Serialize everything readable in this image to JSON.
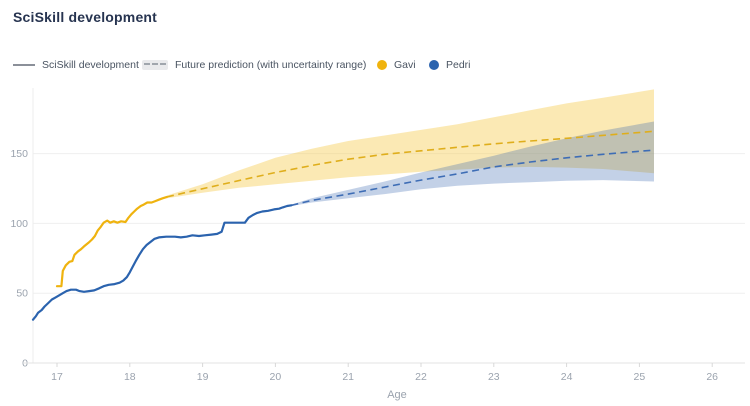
{
  "title": "SciSkill development",
  "legend": {
    "items": [
      {
        "label": "SciSkill development",
        "swatch": "solid-line",
        "color": "#8b9099"
      },
      {
        "label": "Future prediction (with uncertainty range)",
        "swatch": "dashed-pill",
        "color": "#a0a6ad",
        "bg": "#e9eaec"
      },
      {
        "label": "Gavi",
        "swatch": "dot",
        "color": "#F0B30D"
      },
      {
        "label": "Pedri",
        "swatch": "dot",
        "color": "#2B63AE"
      }
    ]
  },
  "chart_data": {
    "type": "line",
    "title": "SciSkill development",
    "xlabel": "Age",
    "ylabel": "",
    "x_ticks": [
      17,
      18,
      19,
      20,
      21,
      22,
      23,
      24,
      25,
      26
    ],
    "y_ticks": [
      0,
      50,
      100,
      150
    ],
    "xlim": [
      16.67,
      26.45
    ],
    "ylim": [
      0,
      197
    ],
    "grid": "horizontal-light",
    "legend_position": "top",
    "colors": {
      "grid": "#efefef",
      "axis": "#e3e3e3",
      "tick": "#d8d8d8",
      "tick_label": "#9ba3ae"
    },
    "series": [
      {
        "name": "Gavi",
        "color": "#EFB30F",
        "dash_color": "#DFAE1C",
        "band_fill": "rgba(246,202,77,0.42)",
        "solid": [
          [
            17.0,
            55
          ],
          [
            17.06,
            55
          ],
          [
            17.08,
            66
          ],
          [
            17.12,
            70
          ],
          [
            17.17,
            72.5
          ],
          [
            17.21,
            73
          ],
          [
            17.24,
            77.5
          ],
          [
            17.29,
            80
          ],
          [
            17.33,
            81.5
          ],
          [
            17.37,
            83.5
          ],
          [
            17.43,
            86
          ],
          [
            17.48,
            88.5
          ],
          [
            17.52,
            91
          ],
          [
            17.56,
            95
          ],
          [
            17.6,
            97.5
          ],
          [
            17.64,
            100.5
          ],
          [
            17.69,
            102
          ],
          [
            17.73,
            100.5
          ],
          [
            17.78,
            101.5
          ],
          [
            17.83,
            100.5
          ],
          [
            17.88,
            101.5
          ],
          [
            17.94,
            101
          ],
          [
            17.98,
            104
          ],
          [
            18.02,
            106.5
          ],
          [
            18.06,
            108.5
          ],
          [
            18.1,
            110.5
          ],
          [
            18.15,
            112.5
          ],
          [
            18.19,
            113.5
          ],
          [
            18.24,
            115
          ],
          [
            18.3,
            115
          ],
          [
            18.35,
            116
          ],
          [
            18.4,
            117
          ],
          [
            18.45,
            118
          ],
          [
            18.51,
            119
          ]
        ],
        "prediction": [
          [
            18.51,
            119
          ],
          [
            18.8,
            122.5
          ],
          [
            19.1,
            126
          ],
          [
            19.4,
            129.5
          ],
          [
            19.7,
            133
          ],
          [
            20.0,
            136.5
          ],
          [
            20.3,
            139.5
          ],
          [
            20.6,
            142.5
          ],
          [
            21.0,
            146
          ],
          [
            21.5,
            149.5
          ],
          [
            22.0,
            152
          ],
          [
            22.5,
            154.5
          ],
          [
            23.0,
            157
          ],
          [
            23.5,
            159
          ],
          [
            24.0,
            161
          ],
          [
            24.6,
            163.5
          ],
          [
            25.2,
            166
          ]
        ],
        "band_upper": [
          [
            18.51,
            120
          ],
          [
            19.0,
            128
          ],
          [
            19.5,
            138
          ],
          [
            20.0,
            147
          ],
          [
            20.5,
            153.5
          ],
          [
            21.0,
            159
          ],
          [
            21.5,
            163
          ],
          [
            22.0,
            167
          ],
          [
            22.5,
            171
          ],
          [
            23.0,
            176
          ],
          [
            23.5,
            181
          ],
          [
            24.0,
            186
          ],
          [
            24.5,
            190
          ],
          [
            25.2,
            196
          ]
        ],
        "band_lower": [
          [
            18.51,
            118
          ],
          [
            19.0,
            122
          ],
          [
            19.5,
            125.5
          ],
          [
            20.0,
            128
          ],
          [
            20.5,
            130.5
          ],
          [
            21.0,
            133
          ],
          [
            21.5,
            135
          ],
          [
            22.0,
            137
          ],
          [
            22.5,
            138.5
          ],
          [
            23.0,
            140
          ],
          [
            23.5,
            140.5
          ],
          [
            24.0,
            140
          ],
          [
            24.5,
            139
          ],
          [
            25.2,
            136
          ]
        ]
      },
      {
        "name": "Pedri",
        "color": "#2B63AE",
        "dash_color": "#3E6DB5",
        "band_fill": "rgba(56,104,176,0.30)",
        "solid": [
          [
            16.67,
            31
          ],
          [
            16.71,
            33.5
          ],
          [
            16.74,
            36
          ],
          [
            16.79,
            38
          ],
          [
            16.83,
            40.5
          ],
          [
            16.88,
            43
          ],
          [
            16.93,
            45.5
          ],
          [
            16.98,
            47
          ],
          [
            17.03,
            48.5
          ],
          [
            17.08,
            50
          ],
          [
            17.13,
            51.5
          ],
          [
            17.19,
            52.5
          ],
          [
            17.26,
            52.5
          ],
          [
            17.31,
            51.5
          ],
          [
            17.37,
            51
          ],
          [
            17.44,
            51.5
          ],
          [
            17.51,
            52
          ],
          [
            17.58,
            53.5
          ],
          [
            17.64,
            55
          ],
          [
            17.71,
            56
          ],
          [
            17.79,
            56.5
          ],
          [
            17.86,
            57.5
          ],
          [
            17.91,
            59
          ],
          [
            17.96,
            61.5
          ],
          [
            18.0,
            65
          ],
          [
            18.04,
            69
          ],
          [
            18.08,
            73
          ],
          [
            18.13,
            77.5
          ],
          [
            18.18,
            81.5
          ],
          [
            18.23,
            84.5
          ],
          [
            18.29,
            87
          ],
          [
            18.34,
            89
          ],
          [
            18.4,
            90
          ],
          [
            18.5,
            90.5
          ],
          [
            18.62,
            90.5
          ],
          [
            18.7,
            90
          ],
          [
            18.78,
            90.5
          ],
          [
            18.86,
            91.5
          ],
          [
            18.95,
            91
          ],
          [
            19.03,
            91.5
          ],
          [
            19.12,
            92
          ],
          [
            19.2,
            92.5
          ],
          [
            19.26,
            94
          ],
          [
            19.3,
            100.5
          ],
          [
            19.45,
            100.5
          ],
          [
            19.58,
            100.5
          ],
          [
            19.63,
            104
          ],
          [
            19.69,
            106
          ],
          [
            19.75,
            107.5
          ],
          [
            19.82,
            108.5
          ],
          [
            19.9,
            109
          ],
          [
            19.98,
            110
          ],
          [
            20.05,
            110.5
          ],
          [
            20.1,
            111.5
          ],
          [
            20.16,
            112.5
          ],
          [
            20.22,
            113
          ]
        ],
        "prediction": [
          [
            20.22,
            113
          ],
          [
            20.5,
            116.5
          ],
          [
            21.0,
            121
          ],
          [
            21.5,
            126
          ],
          [
            22.0,
            131
          ],
          [
            22.5,
            135.5
          ],
          [
            23.0,
            140.5
          ],
          [
            23.5,
            144
          ],
          [
            24.0,
            147
          ],
          [
            24.5,
            149.5
          ],
          [
            25.2,
            152.5
          ]
        ],
        "band_upper": [
          [
            20.22,
            113.5
          ],
          [
            20.5,
            118
          ],
          [
            21.0,
            124
          ],
          [
            21.5,
            130
          ],
          [
            22.0,
            136.5
          ],
          [
            22.5,
            142.5
          ],
          [
            23.0,
            148.5
          ],
          [
            23.5,
            155
          ],
          [
            24.0,
            161
          ],
          [
            24.5,
            166.5
          ],
          [
            25.2,
            173
          ]
        ],
        "band_lower": [
          [
            20.22,
            112.5
          ],
          [
            20.5,
            115
          ],
          [
            21.0,
            118
          ],
          [
            21.5,
            121
          ],
          [
            22.0,
            124.5
          ],
          [
            22.5,
            127
          ],
          [
            23.0,
            128.5
          ],
          [
            23.5,
            129.5
          ],
          [
            24.0,
            130.5
          ],
          [
            24.5,
            131
          ],
          [
            25.2,
            130
          ]
        ]
      }
    ]
  }
}
